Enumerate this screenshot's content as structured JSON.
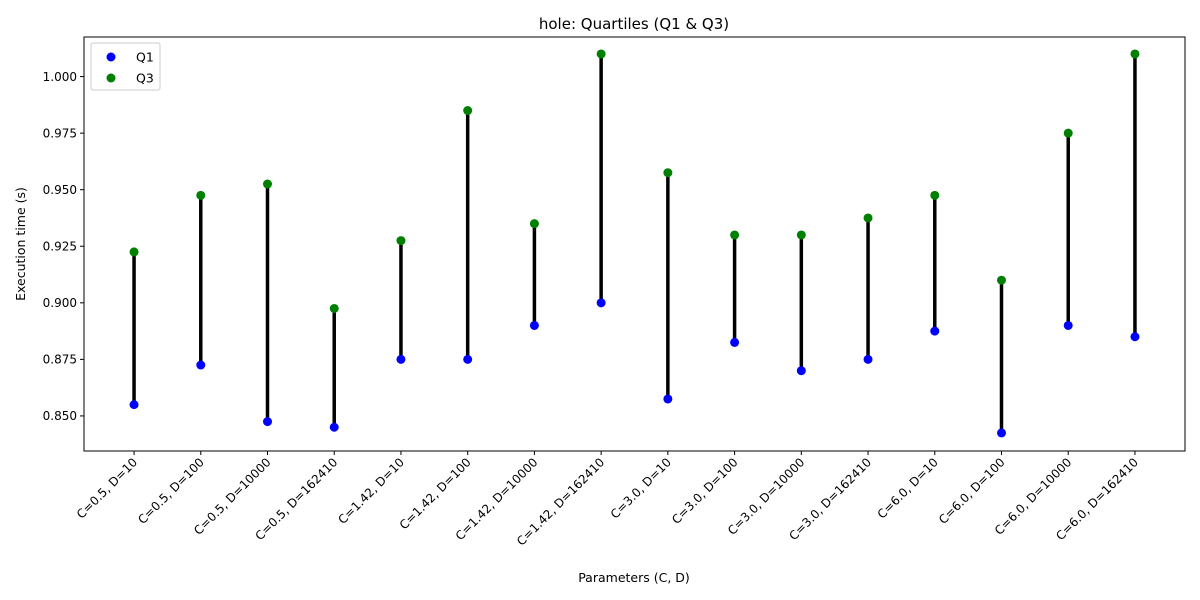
{
  "chart_data": {
    "type": "scatter",
    "title": "hole: Quartiles (Q1 & Q3)",
    "xlabel": "Parameters (C, D)",
    "ylabel": "Execution time (s)",
    "categories": [
      "C=0.5, D=10",
      "C=0.5, D=100",
      "C=0.5, D=10000",
      "C=0.5, D=162410",
      "C=1.42, D=10",
      "C=1.42, D=100",
      "C=1.42, D=10000",
      "C=1.42, D=162410",
      "C=3.0, D=10",
      "C=3.0, D=100",
      "C=3.0, D=10000",
      "C=3.0, D=162410",
      "C=6.0, D=10",
      "C=6.0, D=100",
      "C=6.0, D=10000",
      "C=6.0, D=162410"
    ],
    "series": [
      {
        "name": "Q1",
        "color": "#0000ff",
        "values": [
          0.855,
          0.8725,
          0.8475,
          0.845,
          0.875,
          0.875,
          0.89,
          0.9,
          0.8575,
          0.8825,
          0.87,
          0.875,
          0.8875,
          0.8425,
          0.89,
          0.885
        ]
      },
      {
        "name": "Q3",
        "color": "#008000",
        "values": [
          0.9225,
          0.9475,
          0.9525,
          0.8975,
          0.9275,
          0.985,
          0.935,
          1.01,
          0.9575,
          0.93,
          0.93,
          0.9375,
          0.9475,
          0.91,
          0.975,
          1.01
        ]
      }
    ],
    "connector_color": "#000000",
    "ylim": [
      0.8345,
      1.0175
    ],
    "yticks": [
      "0.850",
      "0.875",
      "0.900",
      "0.925",
      "0.950",
      "0.975",
      "1.000"
    ],
    "legend_position": "upper left",
    "grid": false
  }
}
